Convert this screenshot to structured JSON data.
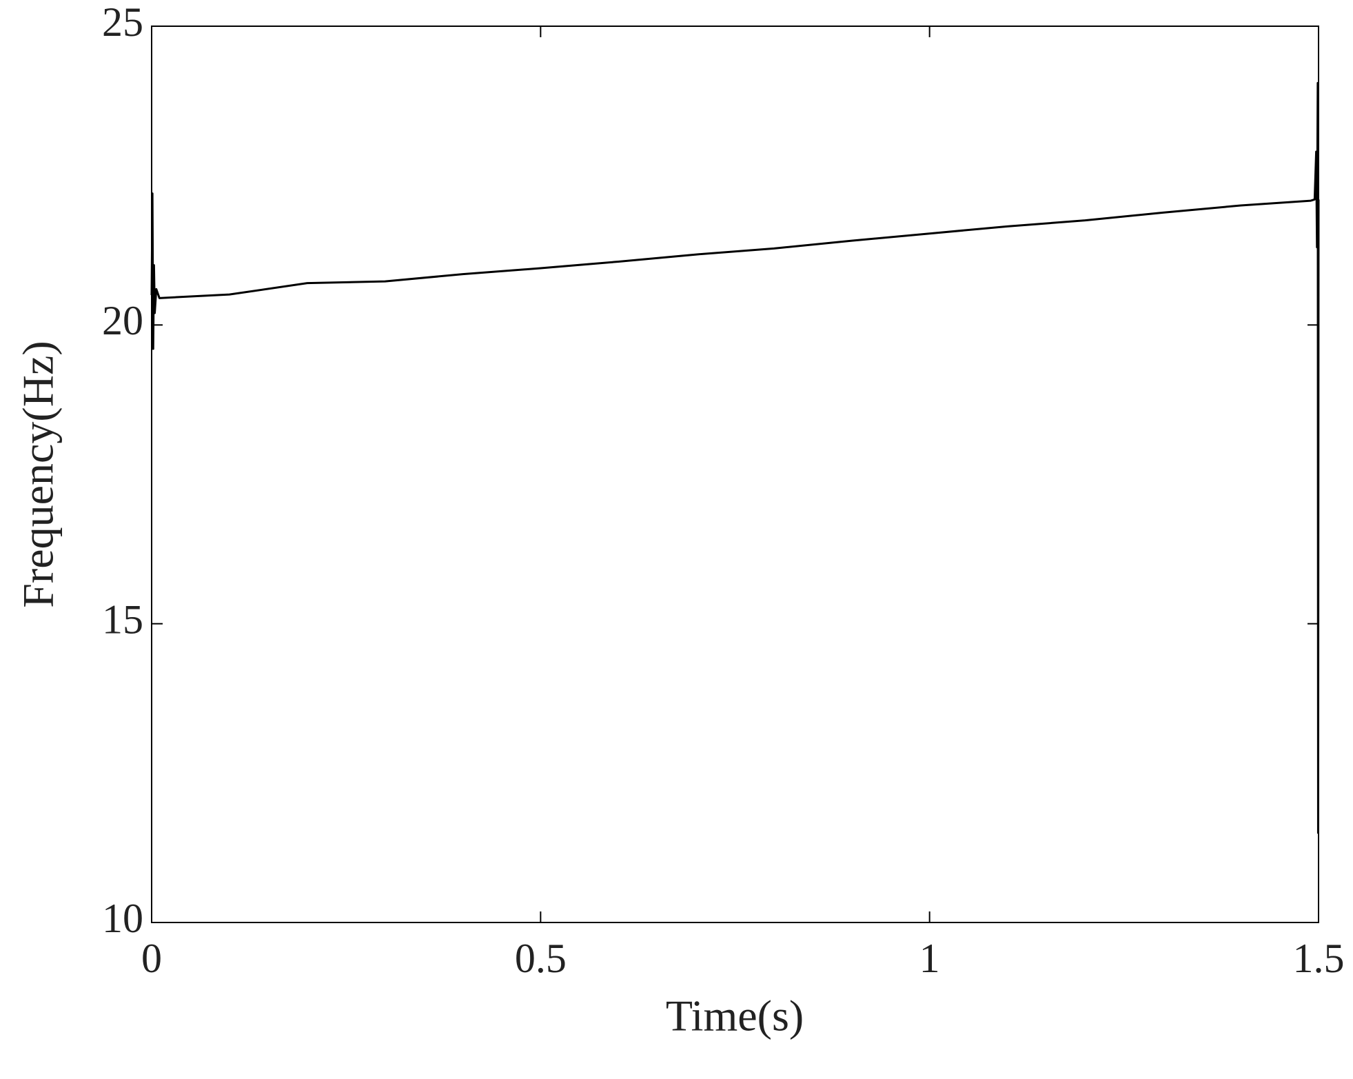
{
  "chart_data": {
    "type": "line",
    "x_label": "Time(s)",
    "y_label": "Frequency(Hz)",
    "xlim": [
      0,
      1.5
    ],
    "xticks": [
      0,
      0.5,
      1,
      1.5
    ],
    "ylim": [
      10,
      25
    ],
    "yticks": [
      10,
      15,
      20,
      25
    ],
    "grid": false,
    "series": [
      {
        "color": "#000000",
        "x": [
          0,
          0.001,
          0.002,
          0.003,
          0.004,
          0.006,
          0.01,
          0.1,
          0.2,
          0.3,
          0.4,
          0.5,
          0.6,
          0.7,
          0.8,
          0.9,
          1.0,
          1.1,
          1.2,
          1.3,
          1.4,
          1.49,
          1.495,
          1.497,
          1.498,
          1.499,
          1.4995,
          1.5
        ],
        "values": [
          20.5,
          22.2,
          19.6,
          21.0,
          20.2,
          20.6,
          20.45,
          20.51,
          20.7,
          20.73,
          20.85,
          20.95,
          21.06,
          21.18,
          21.28,
          21.41,
          21.53,
          21.65,
          21.75,
          21.88,
          22.0,
          22.08,
          22.1,
          22.9,
          21.3,
          24.05,
          11.5,
          22.1
        ]
      }
    ]
  }
}
